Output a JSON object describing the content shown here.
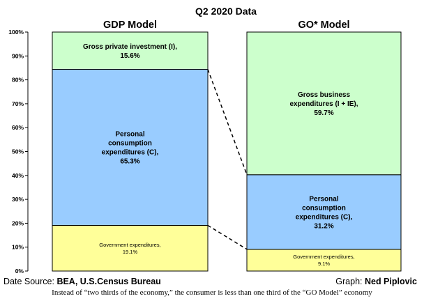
{
  "chart_data": {
    "type": "bar",
    "stacked": true,
    "title": "Q2 2020 Data",
    "categories": [
      "GDP Model",
      "GO* Model"
    ],
    "ylim": [
      0,
      100
    ],
    "yticks": [
      "0%",
      "10%",
      "20%",
      "30%",
      "40%",
      "50%",
      "60%",
      "70%",
      "80%",
      "90%",
      "100%"
    ],
    "series": [
      {
        "name": "Government expenditures",
        "values": [
          19.1,
          9.1
        ],
        "color": "#ffff99",
        "labels": [
          "Government expenditures,\n19.1%",
          "Government expenditures,\n9.1%"
        ],
        "label_size": "small"
      },
      {
        "name": "Personal consumption expenditures (C)",
        "values": [
          65.3,
          31.2
        ],
        "color": "#99ccff",
        "labels": [
          "Personal\nconsumption\nexpenditures (C),\n65.3%",
          "Personal\nconsumption\nexpenditures (C),\n31.2%"
        ],
        "label_size": "normal"
      },
      {
        "name": "Investment",
        "values": [
          15.6,
          59.7
        ],
        "color": "#ccffcc",
        "labels": [
          "Gross private investment (I),\n15.6%",
          "Gross business\nexpenditures (I + IE),\n59.7%"
        ],
        "label_size": "normal"
      }
    ],
    "connectors": "dashed",
    "grid": false
  },
  "footer": {
    "source_label": "Date Source: ",
    "source_value": "BEA, U.S.Census Bureau",
    "graph_label": "Graph: ",
    "graph_value": "Ned Piplovic",
    "caption": "Instead of “two thirds of the economy,” the consumer is less than one third of the “GO Model” economy"
  }
}
